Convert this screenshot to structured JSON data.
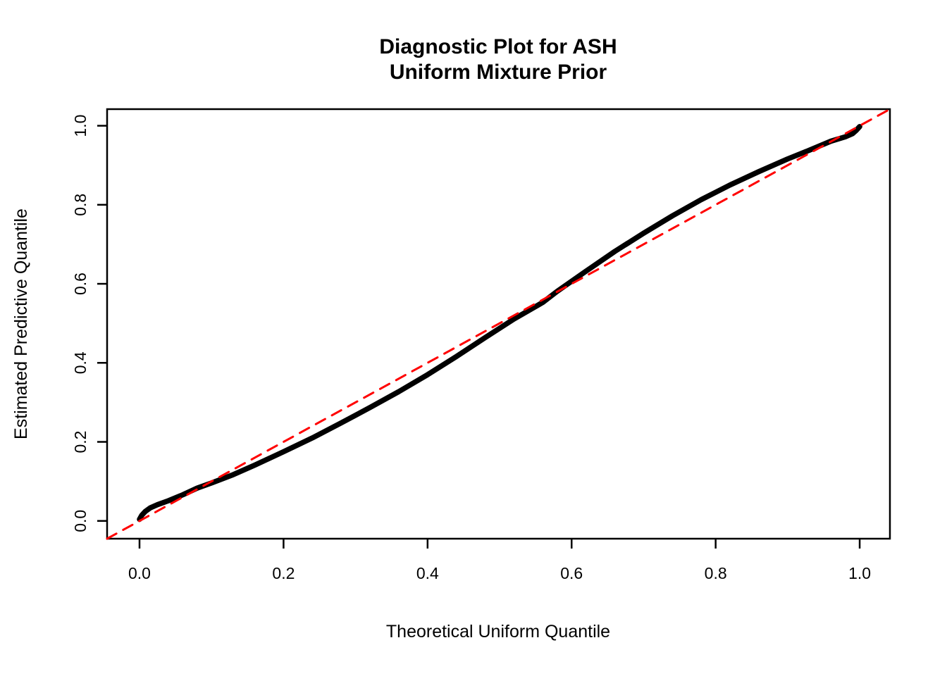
{
  "chart_data": {
    "type": "line",
    "title": "Diagnostic Plot for ASH Uniform Mixture Prior",
    "title_lines": [
      "Diagnostic Plot for ASH",
      "Uniform Mixture Prior"
    ],
    "xlabel": "Theoretical Uniform Quantile",
    "ylabel": "Estimated Predictive Quantile",
    "xlim": [
      -0.045,
      1.042
    ],
    "ylim": [
      -0.045,
      1.042
    ],
    "xticks": [
      0.0,
      0.2,
      0.4,
      0.6,
      0.8,
      1.0
    ],
    "yticks": [
      0.0,
      0.2,
      0.4,
      0.6,
      0.8,
      1.0
    ],
    "grid": false,
    "legend": "none",
    "colors": {
      "curve": "#000000",
      "reference_line": "#FF0000",
      "axis": "#000000",
      "background": "#FFFFFF"
    },
    "series": [
      {
        "name": "estimated-predictive-quantile-curve",
        "style": "solid",
        "color": "#000000",
        "stroke_width": 7.5,
        "points": [
          [
            0.0,
            0.004
          ],
          [
            0.003,
            0.014
          ],
          [
            0.008,
            0.024
          ],
          [
            0.015,
            0.033
          ],
          [
            0.025,
            0.041
          ],
          [
            0.04,
            0.051
          ],
          [
            0.06,
            0.066
          ],
          [
            0.08,
            0.083
          ],
          [
            0.1,
            0.096
          ],
          [
            0.13,
            0.117
          ],
          [
            0.16,
            0.141
          ],
          [
            0.2,
            0.175
          ],
          [
            0.24,
            0.21
          ],
          [
            0.28,
            0.248
          ],
          [
            0.32,
            0.287
          ],
          [
            0.36,
            0.327
          ],
          [
            0.4,
            0.37
          ],
          [
            0.44,
            0.416
          ],
          [
            0.48,
            0.464
          ],
          [
            0.52,
            0.511
          ],
          [
            0.56,
            0.553
          ],
          [
            0.58,
            0.581
          ],
          [
            0.62,
            0.632
          ],
          [
            0.66,
            0.682
          ],
          [
            0.7,
            0.728
          ],
          [
            0.74,
            0.772
          ],
          [
            0.78,
            0.813
          ],
          [
            0.82,
            0.85
          ],
          [
            0.86,
            0.884
          ],
          [
            0.9,
            0.916
          ],
          [
            0.93,
            0.938
          ],
          [
            0.96,
            0.961
          ],
          [
            0.98,
            0.972
          ],
          [
            0.99,
            0.98
          ],
          [
            0.995,
            0.988
          ],
          [
            1.0,
            0.998
          ]
        ]
      },
      {
        "name": "reference-line-y-equals-x",
        "style": "dashed",
        "color": "#FF0000",
        "stroke_width": 3,
        "points": [
          [
            -0.045,
            -0.045
          ],
          [
            1.042,
            1.042
          ]
        ]
      }
    ]
  }
}
